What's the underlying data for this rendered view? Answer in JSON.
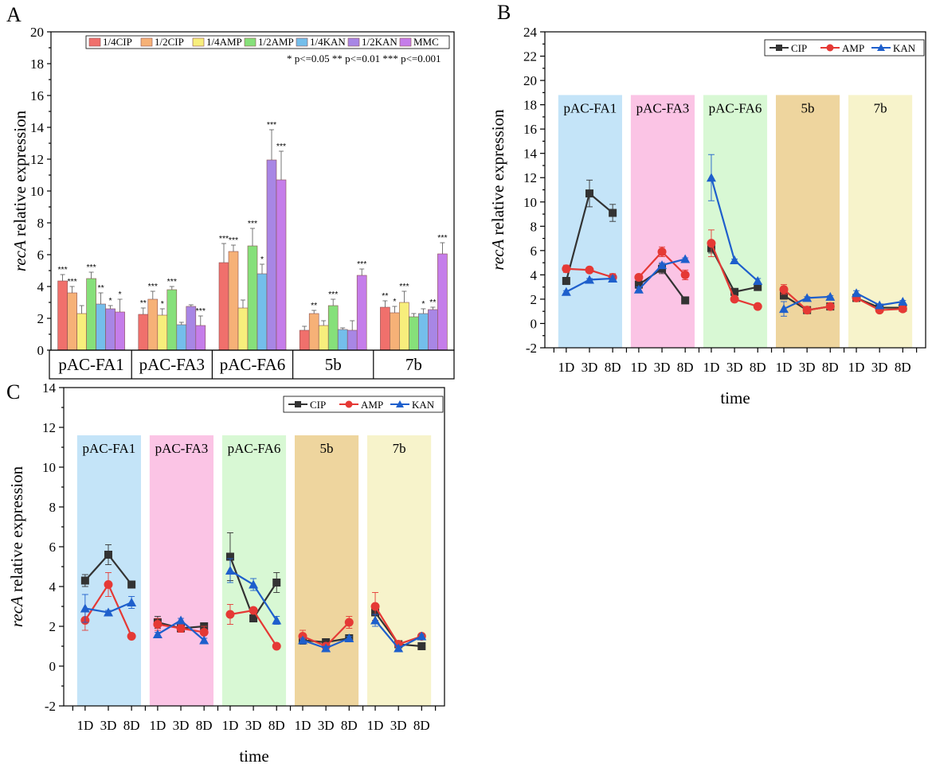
{
  "chart_data": [
    {
      "panel": "A",
      "type": "bar",
      "ylabel_italic": "recA",
      "ylabel_rest": " relative expression",
      "ylim": [
        0,
        20
      ],
      "yticks": [
        "0",
        "2",
        "4",
        "6",
        "8",
        "10",
        "12",
        "14",
        "16",
        "18",
        "20"
      ],
      "categories": [
        "pAC-FA1",
        "pAC-FA3",
        "pAC-FA6",
        "5b",
        "7b"
      ],
      "series": [
        {
          "name": "1/4CIP",
          "color": "#F0706C",
          "values": [
            4.35,
            2.25,
            5.5,
            1.25,
            2.7
          ],
          "errors": [
            0.4,
            0.4,
            1.2,
            0.25,
            0.4
          ],
          "sig": [
            "***",
            "**",
            "***",
            "",
            "**"
          ]
        },
        {
          "name": "1/2CIP",
          "color": "#F6B177",
          "values": [
            3.6,
            3.2,
            6.2,
            2.3,
            2.35
          ],
          "errors": [
            0.4,
            0.5,
            0.4,
            0.2,
            0.4
          ],
          "sig": [
            "***",
            "***",
            "***",
            "**",
            "*"
          ]
        },
        {
          "name": "1/4AMP",
          "color": "#F7EE7C",
          "values": [
            2.3,
            2.2,
            2.65,
            1.55,
            3.0
          ],
          "errors": [
            0.5,
            0.4,
            0.5,
            0.3,
            0.7
          ],
          "sig": [
            "",
            "*",
            "",
            "",
            "***"
          ]
        },
        {
          "name": "1/2AMP",
          "color": "#86E07A",
          "values": [
            4.5,
            3.8,
            6.55,
            2.8,
            2.1
          ],
          "errors": [
            0.4,
            0.2,
            1.1,
            0.4,
            0.2
          ],
          "sig": [
            "***",
            "***",
            "***",
            "***",
            ""
          ]
        },
        {
          "name": "1/4KAN",
          "color": "#74BEEB",
          "values": [
            2.9,
            1.6,
            4.8,
            1.3,
            2.3
          ],
          "errors": [
            0.7,
            0.15,
            0.6,
            0.1,
            0.3
          ],
          "sig": [
            "**",
            "",
            "*",
            "",
            "*"
          ]
        },
        {
          "name": "1/2KAN",
          "color": "#A886E5",
          "values": [
            2.6,
            2.75,
            11.95,
            1.25,
            2.55
          ],
          "errors": [
            0.2,
            0.1,
            1.9,
            0.6,
            0.15
          ],
          "sig": [
            "*",
            "",
            "***",
            "",
            "**"
          ]
        },
        {
          "name": "MMC",
          "color": "#C57DEA",
          "values": [
            2.4,
            1.55,
            10.7,
            4.7,
            6.05
          ],
          "errors": [
            0.8,
            0.6,
            1.8,
            0.4,
            0.7
          ],
          "sig": [
            "*",
            "***",
            "***",
            "***",
            "***"
          ]
        }
      ],
      "legend_note": "* p<=0.05   ** p<=0.01   *** p<=0.001"
    },
    {
      "panel": "B",
      "type": "line",
      "ylabel_italic": "recA",
      "ylabel_rest": " relative expression",
      "xlabel": "time",
      "ylim": [
        -2,
        24
      ],
      "yticks": [
        "-2",
        "0",
        "2",
        "4",
        "6",
        "8",
        "10",
        "12",
        "14",
        "16",
        "18",
        "20",
        "22",
        "24"
      ],
      "x_ticks": [
        "1D",
        "3D",
        "8D"
      ],
      "groups": [
        {
          "name": "pAC-FA1",
          "color": "#C4E4F8",
          "top": 18.8
        },
        {
          "name": "pAC-FA3",
          "color": "#FBC4E5",
          "top": 18.8
        },
        {
          "name": "pAC-FA6",
          "color": "#D8F8D4",
          "top": 18.8
        },
        {
          "name": "5b",
          "color": "#EED59E",
          "top": 18.8
        },
        {
          "name": "7b",
          "color": "#F7F3CB",
          "top": 18.8
        }
      ],
      "series": [
        {
          "name": "CIP",
          "color": "#333333",
          "marker": "square",
          "values": [
            [
              3.5,
              10.7,
              9.1
            ],
            [
              3.2,
              4.5,
              1.9
            ],
            [
              6.2,
              2.6,
              3.0
            ],
            [
              2.3,
              1.1,
              1.4
            ],
            [
              2.1,
              1.3,
              1.3
            ]
          ],
          "errors": [
            [
              0.3,
              1.1,
              0.7
            ],
            [
              0.3,
              0.4,
              0.1
            ],
            [
              0.4,
              0.2,
              0.2
            ],
            [
              0.3,
              0.15,
              0.1
            ],
            [
              0.2,
              0.15,
              0.1
            ]
          ]
        },
        {
          "name": "AMP",
          "color": "#E53935",
          "marker": "circle",
          "values": [
            [
              4.5,
              4.4,
              3.8
            ],
            [
              3.8,
              5.9,
              4.0
            ],
            [
              6.6,
              2.0,
              1.4
            ],
            [
              2.8,
              1.1,
              1.4
            ],
            [
              2.1,
              1.1,
              1.2
            ]
          ],
          "errors": [
            [
              0.3,
              0.2,
              0.3
            ],
            [
              0.2,
              0.4,
              0.4
            ],
            [
              1.1,
              0.2,
              0.1
            ],
            [
              0.4,
              0.1,
              0.2
            ],
            [
              0.1,
              0.1,
              0.1
            ]
          ]
        },
        {
          "name": "KAN",
          "color": "#1E5FCC",
          "marker": "triangle",
          "values": [
            [
              2.6,
              3.6,
              3.7
            ],
            [
              2.8,
              4.8,
              5.3
            ],
            [
              12.0,
              5.2,
              3.5
            ],
            [
              1.2,
              2.1,
              2.2
            ],
            [
              2.5,
              1.5,
              1.8
            ]
          ],
          "errors": [
            [
              0.1,
              0.1,
              0.2
            ],
            [
              0.2,
              0.2,
              0.1
            ],
            [
              1.9,
              0.1,
              0.2
            ],
            [
              0.6,
              0.1,
              0.1
            ],
            [
              0.2,
              0.1,
              0.1
            ]
          ]
        }
      ]
    },
    {
      "panel": "C",
      "type": "line",
      "ylabel_italic": "recA",
      "ylabel_rest": " relative expression",
      "xlabel": "time",
      "ylim": [
        -2,
        14
      ],
      "yticks": [
        "-2",
        "0",
        "2",
        "4",
        "6",
        "8",
        "10",
        "12",
        "14"
      ],
      "x_ticks": [
        "1D",
        "3D",
        "8D"
      ],
      "groups": [
        {
          "name": "pAC-FA1",
          "color": "#C4E4F8",
          "top": 11.6
        },
        {
          "name": "pAC-FA3",
          "color": "#FBC4E5",
          "top": 11.6
        },
        {
          "name": "pAC-FA6",
          "color": "#D8F8D4",
          "top": 11.6
        },
        {
          "name": "5b",
          "color": "#EED59E",
          "top": 11.6
        },
        {
          "name": "7b",
          "color": "#F7F3CB",
          "top": 11.6
        }
      ],
      "series": [
        {
          "name": "CIP",
          "color": "#333333",
          "marker": "square",
          "values": [
            [
              4.3,
              5.6,
              4.1
            ],
            [
              2.2,
              1.9,
              2.0
            ],
            [
              5.5,
              2.4,
              4.2
            ],
            [
              1.3,
              1.2,
              1.4
            ],
            [
              2.7,
              1.1,
              1.0
            ]
          ],
          "errors": [
            [
              0.3,
              0.5,
              0.1
            ],
            [
              0.3,
              0.1,
              0.1
            ],
            [
              1.2,
              0.1,
              0.5
            ],
            [
              0.2,
              0.1,
              0.1
            ],
            [
              0.4,
              0.1,
              0.1
            ]
          ]
        },
        {
          "name": "AMP",
          "color": "#E53935",
          "marker": "circle",
          "values": [
            [
              2.3,
              4.1,
              1.5
            ],
            [
              2.1,
              1.9,
              1.7
            ],
            [
              2.6,
              2.8,
              1.0
            ],
            [
              1.5,
              1.0,
              2.2
            ],
            [
              3.0,
              1.1,
              1.5
            ]
          ],
          "errors": [
            [
              0.5,
              0.6,
              0.1
            ],
            [
              0.3,
              0.2,
              0.3
            ],
            [
              0.5,
              0.1,
              0.1
            ],
            [
              0.3,
              0.1,
              0.3
            ],
            [
              0.7,
              0.1,
              0.1
            ]
          ]
        },
        {
          "name": "KAN",
          "color": "#1E5FCC",
          "marker": "triangle",
          "values": [
            [
              2.9,
              2.7,
              3.2
            ],
            [
              1.6,
              2.3,
              1.3
            ],
            [
              4.8,
              4.1,
              2.3
            ],
            [
              1.3,
              0.9,
              1.4
            ],
            [
              2.3,
              0.9,
              1.5
            ]
          ],
          "errors": [
            [
              0.7,
              0.1,
              0.3
            ],
            [
              0.1,
              0.1,
              0.1
            ],
            [
              0.6,
              0.3,
              0.2
            ],
            [
              0.1,
              0.1,
              0.1
            ],
            [
              0.3,
              0.1,
              0.1
            ]
          ]
        }
      ]
    }
  ],
  "panel_labels": [
    "A",
    "B",
    "C"
  ]
}
